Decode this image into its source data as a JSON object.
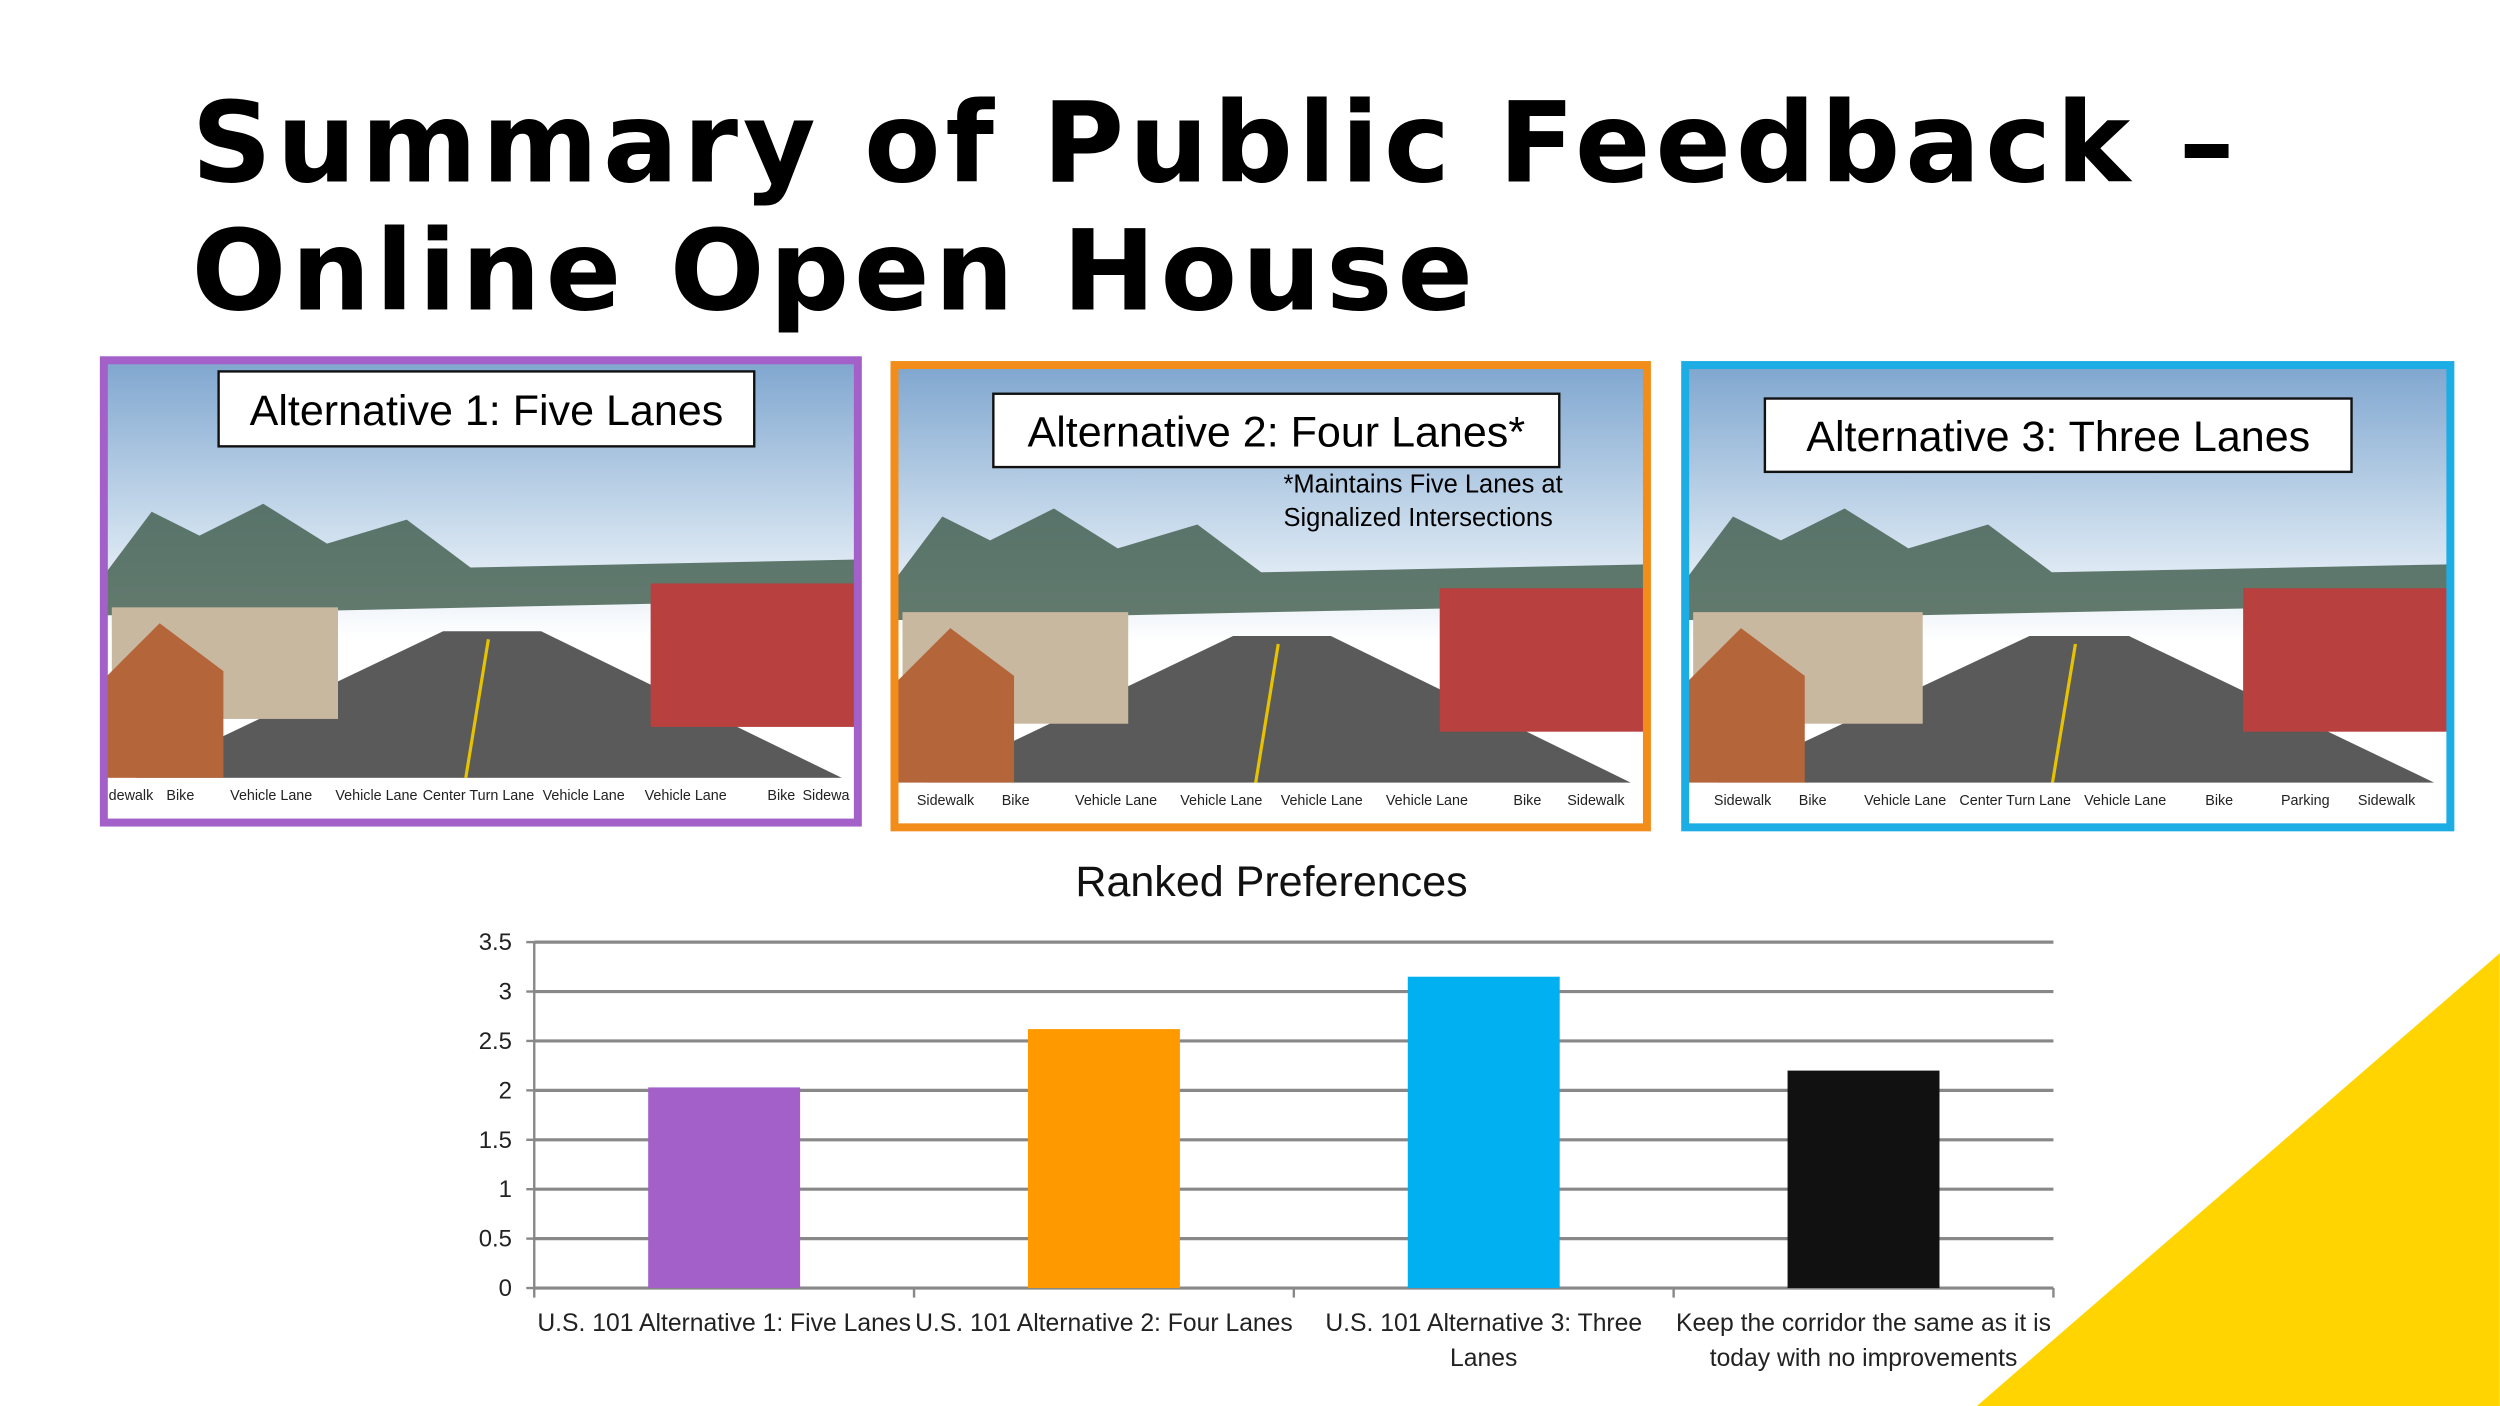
{
  "slide": {
    "title_lines": [
      "Summary of Public Feedback –",
      "Online Open House"
    ],
    "panels": [
      {
        "label": "Alternative 1: Five Lanes",
        "lanes": [
          "dewalk",
          "Bike",
          "Vehicle Lane",
          "Vehicle Lane",
          "Center Turn Lane",
          "Vehicle Lane",
          "Vehicle Lane",
          "Bike",
          "Sidewa"
        ]
      },
      {
        "label": "Alternative 2: Four Lanes*",
        "note_lines": [
          "*Maintains Five Lanes at",
          "Signalized Intersections"
        ],
        "lanes": [
          "Sidewalk",
          "Bike",
          "Vehicle Lane",
          "Vehicle Lane",
          "Vehicle Lane",
          "Vehicle Lane",
          "Bike",
          "Sidewalk"
        ]
      },
      {
        "label": "Alternative 3: Three Lanes",
        "lanes": [
          "Sidewalk",
          "Bike",
          "Vehicle Lane",
          "Center Turn Lane",
          "Vehicle Lane",
          "Bike",
          "Parking",
          "Sidewalk"
        ]
      }
    ]
  },
  "chart_data": {
    "type": "bar",
    "title": "Ranked Preferences",
    "categories": [
      "U.S. 101 Alternative 1: Five Lanes",
      "U.S. 101 Alternative 2: Four Lanes",
      "U.S. 101 Alternative 3: Three Lanes",
      "Keep the corridor the same as it is today with no improvements"
    ],
    "values": [
      2.03,
      2.62,
      3.15,
      2.2
    ],
    "colors": [
      "#a260c8",
      "#ff9900",
      "#00b0f0",
      "#111111"
    ],
    "ylim": [
      0,
      3.5
    ],
    "yticks": [
      0,
      0.5,
      1,
      1.5,
      2,
      2.5,
      3,
      3.5
    ],
    "grid": true
  }
}
